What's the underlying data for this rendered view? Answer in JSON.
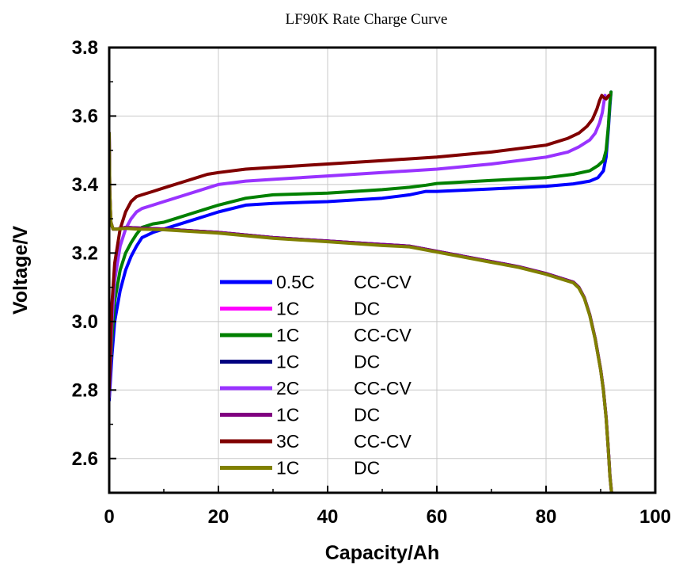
{
  "chart_data": {
    "type": "line",
    "title": "LF90K Rate Charge Curve",
    "xlabel": "Capacity/Ah",
    "ylabel": "Voltage/V",
    "xlim": [
      0,
      100
    ],
    "ylim": [
      2.5,
      3.8
    ],
    "xticks": [
      "0",
      "20",
      "40",
      "60",
      "80",
      "100"
    ],
    "yticks": [
      "2.6",
      "2.8",
      "3.0",
      "3.2",
      "3.4",
      "3.6",
      "3.8"
    ],
    "grid": true,
    "legend_position": "center-left",
    "series": [
      {
        "name": "0.5C",
        "mode": "CC-CV",
        "color": "#0000ff",
        "x": [
          0,
          0.5,
          1,
          2,
          3,
          4,
          5,
          6,
          8,
          10,
          12,
          16,
          20,
          25,
          30,
          40,
          50,
          55,
          58,
          60,
          70,
          80,
          85,
          88,
          89.5,
          90.5,
          91,
          91.4,
          91.7,
          91.9
        ],
        "y": [
          2.77,
          2.9,
          3.0,
          3.09,
          3.15,
          3.19,
          3.22,
          3.245,
          3.26,
          3.27,
          3.28,
          3.3,
          3.32,
          3.34,
          3.345,
          3.35,
          3.36,
          3.37,
          3.38,
          3.38,
          3.387,
          3.395,
          3.402,
          3.41,
          3.42,
          3.44,
          3.48,
          3.56,
          3.63,
          3.67
        ]
      },
      {
        "name": "1C",
        "mode": "DC",
        "color": "#ff00ff",
        "x": [
          0,
          0.1,
          0.3,
          0.7,
          1.5,
          3,
          5,
          10,
          20,
          30,
          40,
          50,
          55,
          60,
          70,
          75,
          80,
          83,
          85,
          86,
          87,
          88,
          89,
          90,
          90.5,
          91,
          91.3,
          91.5,
          91.7,
          92
        ],
        "y": [
          3.55,
          3.38,
          3.29,
          3.27,
          3.27,
          3.275,
          3.273,
          3.27,
          3.26,
          3.245,
          3.235,
          3.225,
          3.22,
          3.205,
          3.175,
          3.16,
          3.14,
          3.125,
          3.115,
          3.1,
          3.07,
          3.02,
          2.95,
          2.86,
          2.8,
          2.72,
          2.65,
          2.6,
          2.55,
          2.5
        ]
      },
      {
        "name": "1C",
        "mode": "CC-CV",
        "color": "#008000",
        "x": [
          0,
          0.5,
          1,
          2,
          3,
          4,
          5,
          6,
          8,
          10,
          12,
          16,
          20,
          25,
          30,
          40,
          50,
          55,
          58,
          60,
          70,
          80,
          85,
          88,
          89.5,
          90.5,
          91,
          91.4,
          91.7,
          91.9
        ],
        "y": [
          2.8,
          2.95,
          3.06,
          3.15,
          3.2,
          3.23,
          3.255,
          3.275,
          3.285,
          3.29,
          3.3,
          3.32,
          3.34,
          3.36,
          3.37,
          3.375,
          3.385,
          3.392,
          3.398,
          3.403,
          3.412,
          3.42,
          3.43,
          3.44,
          3.455,
          3.47,
          3.5,
          3.57,
          3.64,
          3.67
        ]
      },
      {
        "name": "1C",
        "mode": "DC",
        "color": "#000080",
        "x": [
          0,
          0.1,
          0.3,
          0.7,
          1.5,
          3,
          5,
          10,
          20,
          30,
          40,
          50,
          55,
          60,
          70,
          75,
          80,
          83,
          85,
          86,
          87,
          88,
          89,
          90,
          90.5,
          91,
          91.3,
          91.5,
          91.7,
          92
        ],
        "y": [
          3.55,
          3.38,
          3.29,
          3.27,
          3.27,
          3.275,
          3.273,
          3.27,
          3.26,
          3.245,
          3.235,
          3.225,
          3.22,
          3.205,
          3.175,
          3.16,
          3.14,
          3.125,
          3.115,
          3.1,
          3.07,
          3.02,
          2.95,
          2.86,
          2.8,
          2.72,
          2.65,
          2.6,
          2.55,
          2.5
        ]
      },
      {
        "name": "2C",
        "mode": "CC-CV",
        "color": "#9933ff",
        "x": [
          0,
          0.5,
          1,
          2,
          3,
          4,
          5,
          6,
          8,
          10,
          14,
          18,
          20,
          25,
          30,
          40,
          50,
          60,
          70,
          80,
          84,
          86,
          88,
          89,
          89.8,
          90.3,
          90.6,
          90.8
        ],
        "y": [
          2.78,
          3.0,
          3.12,
          3.22,
          3.27,
          3.3,
          3.32,
          3.33,
          3.34,
          3.35,
          3.37,
          3.39,
          3.4,
          3.41,
          3.415,
          3.425,
          3.435,
          3.445,
          3.46,
          3.48,
          3.495,
          3.51,
          3.53,
          3.55,
          3.58,
          3.61,
          3.64,
          3.66
        ]
      },
      {
        "name": "1C",
        "mode": "DC",
        "color": "#800080",
        "x": [
          0,
          0.1,
          0.3,
          0.7,
          1.5,
          3,
          5,
          10,
          20,
          30,
          40,
          50,
          55,
          60,
          70,
          75,
          80,
          83,
          85,
          86,
          87,
          88,
          89,
          90,
          90.5,
          91,
          91.3,
          91.5,
          91.7,
          92
        ],
        "y": [
          3.55,
          3.38,
          3.29,
          3.27,
          3.27,
          3.275,
          3.273,
          3.27,
          3.26,
          3.245,
          3.235,
          3.225,
          3.22,
          3.205,
          3.175,
          3.16,
          3.14,
          3.125,
          3.115,
          3.1,
          3.07,
          3.02,
          2.95,
          2.86,
          2.8,
          2.72,
          2.65,
          2.6,
          2.55,
          2.5
        ]
      },
      {
        "name": "3C",
        "mode": "CC-CV",
        "color": "#800000",
        "x": [
          0,
          0.5,
          1,
          2,
          3,
          4,
          5,
          6,
          8,
          10,
          14,
          18,
          20,
          25,
          30,
          40,
          50,
          60,
          70,
          80,
          84,
          86,
          87.5,
          88.5,
          89.3,
          89.8,
          90.2,
          90.5,
          91,
          91.5
        ],
        "y": [
          2.8,
          3.05,
          3.17,
          3.27,
          3.32,
          3.35,
          3.365,
          3.37,
          3.38,
          3.39,
          3.41,
          3.43,
          3.435,
          3.445,
          3.45,
          3.46,
          3.47,
          3.48,
          3.495,
          3.515,
          3.535,
          3.55,
          3.57,
          3.59,
          3.62,
          3.645,
          3.66,
          3.655,
          3.65,
          3.66
        ]
      },
      {
        "name": "1C",
        "mode": "DC",
        "color": "#808000",
        "x": [
          0,
          0.1,
          0.3,
          0.7,
          1.5,
          3,
          5,
          10,
          20,
          30,
          40,
          50,
          55,
          60,
          70,
          75,
          80,
          83,
          85,
          86,
          87,
          88,
          89,
          90,
          90.5,
          91,
          91.3,
          91.5,
          91.7,
          92
        ],
        "y": [
          3.55,
          3.38,
          3.29,
          3.27,
          3.27,
          3.272,
          3.27,
          3.268,
          3.258,
          3.243,
          3.233,
          3.222,
          3.218,
          3.203,
          3.173,
          3.158,
          3.138,
          3.123,
          3.113,
          3.098,
          3.068,
          3.018,
          2.948,
          2.858,
          2.798,
          2.718,
          2.648,
          2.598,
          2.548,
          2.5
        ]
      }
    ]
  }
}
